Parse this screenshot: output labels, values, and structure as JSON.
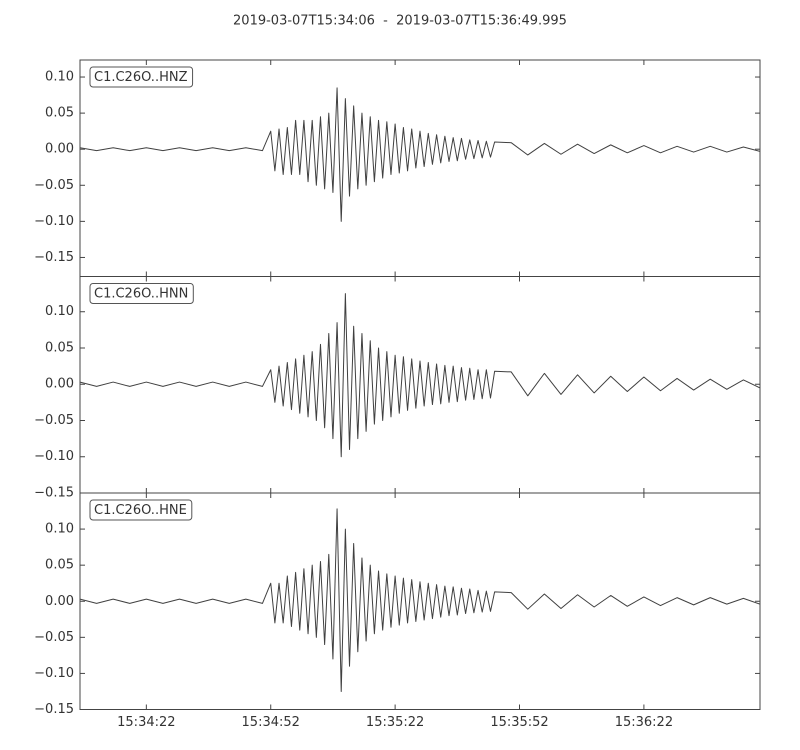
{
  "title": "2019-03-07T15:34:06  -  2019-03-07T15:36:49.995",
  "chart_data": [
    {
      "type": "line",
      "label": "C1.C26O..HNZ",
      "color": "#404040",
      "xlim": [
        0,
        164
      ],
      "ylim": [
        -0.1764,
        0.1236
      ],
      "xticks": [
        16,
        46,
        76,
        106,
        136
      ],
      "yticks": [
        {
          "value": 0.1,
          "label": "0.10"
        },
        {
          "value": 0.05,
          "label": "0.05"
        },
        {
          "value": 0,
          "label": "0.00"
        },
        {
          "value": -0.05,
          "label": "−0.05"
        },
        {
          "value": -0.1,
          "label": "−0.10"
        },
        {
          "value": -0.15,
          "label": "−0.15"
        }
      ],
      "x": [
        0,
        4,
        8,
        12,
        16,
        20,
        24,
        28,
        32,
        36,
        40,
        44,
        46,
        47,
        48,
        49,
        50,
        51,
        52,
        53,
        54,
        55,
        56,
        57,
        58,
        59,
        60,
        61,
        62,
        63,
        64,
        65,
        66,
        67,
        68,
        69,
        70,
        71,
        72,
        73,
        74,
        75,
        76,
        77,
        78,
        79,
        80,
        81,
        82,
        83,
        84,
        85,
        86,
        87,
        88,
        89,
        90,
        91,
        92,
        93,
        94,
        95,
        96,
        97,
        98,
        99,
        100,
        104,
        108,
        112,
        116,
        120,
        124,
        128,
        132,
        136,
        140,
        144,
        148,
        152,
        156,
        160,
        164
      ],
      "values": [
        0.002,
        -0.002,
        0.002,
        -0.002,
        0.002,
        -0.002,
        0.002,
        -0.002,
        0.002,
        -0.002,
        0.002,
        -0.002,
        0.025,
        -0.03,
        0.028,
        -0.035,
        0.03,
        -0.035,
        0.04,
        -0.035,
        0.04,
        -0.045,
        0.04,
        -0.05,
        0.045,
        -0.055,
        0.05,
        -0.06,
        0.085,
        -0.1,
        0.07,
        -0.065,
        0.06,
        -0.055,
        0.05,
        -0.05,
        0.045,
        -0.045,
        0.04,
        -0.04,
        0.038,
        -0.035,
        0.035,
        -0.033,
        0.03,
        -0.03,
        0.028,
        -0.026,
        0.025,
        -0.024,
        0.022,
        -0.021,
        0.02,
        -0.019,
        0.018,
        -0.017,
        0.016,
        -0.016,
        0.015,
        -0.014,
        0.013,
        -0.013,
        0.012,
        -0.012,
        0.011,
        -0.011,
        0.01,
        0.009,
        -0.008,
        0.008,
        -0.007,
        0.007,
        -0.006,
        0.006,
        -0.005,
        0.005,
        -0.005,
        0.004,
        -0.004,
        0.004,
        -0.004,
        0.003,
        -0.003
      ]
    },
    {
      "type": "line",
      "label": "C1.C26O..HNN",
      "color": "#404040",
      "xlim": [
        0,
        164
      ],
      "ylim": [
        -0.15,
        0.1486
      ],
      "xticks": [
        16,
        46,
        76,
        106,
        136
      ],
      "yticks": [
        {
          "value": 0.1,
          "label": "0.10"
        },
        {
          "value": 0.05,
          "label": "0.05"
        },
        {
          "value": 0,
          "label": "0.00"
        },
        {
          "value": -0.05,
          "label": "−0.05"
        },
        {
          "value": -0.1,
          "label": "−0.10"
        },
        {
          "value": -0.15,
          "label": "−0.15"
        }
      ],
      "x": [
        0,
        4,
        8,
        12,
        16,
        20,
        24,
        28,
        32,
        36,
        40,
        44,
        46,
        47,
        48,
        49,
        50,
        51,
        52,
        53,
        54,
        55,
        56,
        57,
        58,
        59,
        60,
        61,
        62,
        63,
        64,
        65,
        66,
        67,
        68,
        69,
        70,
        71,
        72,
        73,
        74,
        75,
        76,
        77,
        78,
        79,
        80,
        81,
        82,
        83,
        84,
        85,
        86,
        87,
        88,
        89,
        90,
        91,
        92,
        93,
        94,
        95,
        96,
        97,
        98,
        99,
        100,
        104,
        108,
        112,
        116,
        120,
        124,
        128,
        132,
        136,
        140,
        144,
        148,
        152,
        156,
        160,
        164
      ],
      "values": [
        0.003,
        -0.003,
        0.003,
        -0.003,
        0.003,
        -0.003,
        0.003,
        -0.003,
        0.003,
        -0.003,
        0.003,
        -0.003,
        0.02,
        -0.025,
        0.025,
        -0.03,
        0.03,
        -0.035,
        0.035,
        -0.04,
        0.04,
        -0.045,
        0.045,
        -0.05,
        0.055,
        -0.06,
        0.07,
        -0.075,
        0.085,
        -0.1,
        0.125,
        -0.09,
        0.08,
        -0.075,
        0.07,
        -0.065,
        0.06,
        -0.055,
        0.05,
        -0.05,
        0.045,
        -0.045,
        0.04,
        -0.04,
        0.038,
        -0.036,
        0.035,
        -0.033,
        0.032,
        -0.03,
        0.03,
        -0.028,
        0.028,
        -0.027,
        0.026,
        -0.025,
        0.025,
        -0.024,
        0.023,
        -0.022,
        0.022,
        -0.021,
        0.02,
        -0.02,
        0.02,
        -0.019,
        0.018,
        0.017,
        -0.016,
        0.015,
        -0.014,
        0.013,
        -0.012,
        0.011,
        -0.01,
        0.01,
        -0.009,
        0.008,
        -0.008,
        0.007,
        -0.007,
        0.006,
        -0.005
      ]
    },
    {
      "type": "line",
      "label": "C1.C26O..HNE",
      "color": "#404040",
      "xlim": [
        0,
        164
      ],
      "ylim": [
        -0.15,
        0.15
      ],
      "xticks": [
        {
          "value": 16,
          "label": "15:34:22"
        },
        {
          "value": 46,
          "label": "15:34:52"
        },
        {
          "value": 76,
          "label": "15:35:22"
        },
        {
          "value": 106,
          "label": "15:35:52"
        },
        {
          "value": 136,
          "label": "15:36:22"
        }
      ],
      "yticks": [
        {
          "value": 0.1,
          "label": "0.10"
        },
        {
          "value": 0.05,
          "label": "0.05"
        },
        {
          "value": 0,
          "label": "0.00"
        },
        {
          "value": -0.05,
          "label": "−0.05"
        },
        {
          "value": -0.1,
          "label": "−0.10"
        },
        {
          "value": -0.15,
          "label": "−0.15"
        }
      ],
      "x": [
        0,
        4,
        8,
        12,
        16,
        20,
        24,
        28,
        32,
        36,
        40,
        44,
        46,
        47,
        48,
        49,
        50,
        51,
        52,
        53,
        54,
        55,
        56,
        57,
        58,
        59,
        60,
        61,
        62,
        63,
        64,
        65,
        66,
        67,
        68,
        69,
        70,
        71,
        72,
        73,
        74,
        75,
        76,
        77,
        78,
        79,
        80,
        81,
        82,
        83,
        84,
        85,
        86,
        87,
        88,
        89,
        90,
        91,
        92,
        93,
        94,
        95,
        96,
        97,
        98,
        99,
        100,
        104,
        108,
        112,
        116,
        120,
        124,
        128,
        132,
        136,
        140,
        144,
        148,
        152,
        156,
        160,
        164
      ],
      "values": [
        0.003,
        -0.003,
        0.003,
        -0.003,
        0.003,
        -0.003,
        0.003,
        -0.003,
        0.003,
        -0.003,
        0.003,
        -0.003,
        0.025,
        -0.03,
        0.025,
        -0.03,
        0.035,
        -0.035,
        0.04,
        -0.04,
        0.045,
        -0.045,
        0.05,
        -0.05,
        0.055,
        -0.06,
        0.065,
        -0.08,
        0.128,
        -0.125,
        0.1,
        -0.09,
        0.08,
        -0.07,
        0.06,
        -0.055,
        0.05,
        -0.045,
        0.042,
        -0.04,
        0.038,
        -0.036,
        0.035,
        -0.033,
        0.032,
        -0.03,
        0.03,
        -0.028,
        0.027,
        -0.026,
        0.025,
        -0.024,
        0.023,
        -0.022,
        0.021,
        -0.02,
        0.02,
        -0.019,
        0.018,
        -0.017,
        0.017,
        -0.016,
        0.015,
        -0.015,
        0.014,
        -0.014,
        0.013,
        0.012,
        -0.011,
        0.01,
        -0.01,
        0.009,
        -0.008,
        0.008,
        -0.007,
        0.006,
        -0.006,
        0.005,
        -0.005,
        0.005,
        -0.004,
        0.004,
        -0.004
      ]
    }
  ]
}
